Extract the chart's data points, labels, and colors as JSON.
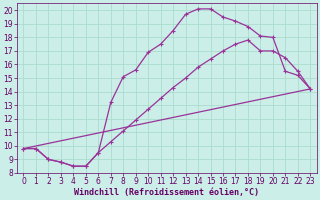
{
  "xlabel": "Windchill (Refroidissement éolien,°C)",
  "bg_color": "#cceee8",
  "grid_color": "#aaddcc",
  "line_color": "#993399",
  "xlim": [
    -0.5,
    23.5
  ],
  "ylim": [
    8,
    20.5
  ],
  "xticks": [
    0,
    1,
    2,
    3,
    4,
    5,
    6,
    7,
    8,
    9,
    10,
    11,
    12,
    13,
    14,
    15,
    16,
    17,
    18,
    19,
    20,
    21,
    22,
    23
  ],
  "yticks": [
    8,
    9,
    10,
    11,
    12,
    13,
    14,
    15,
    16,
    17,
    18,
    19,
    20
  ],
  "line1_x": [
    0,
    1,
    2,
    3,
    4,
    5,
    6,
    7,
    8,
    9,
    10,
    11,
    12,
    13,
    14,
    15,
    16,
    17,
    18,
    19,
    20,
    21,
    22,
    23
  ],
  "line1_y": [
    9.8,
    9.8,
    9.0,
    8.8,
    8.5,
    8.5,
    9.5,
    13.2,
    15.1,
    15.6,
    16.9,
    17.5,
    18.5,
    19.7,
    20.1,
    20.1,
    19.5,
    19.2,
    18.8,
    18.1,
    18.0,
    15.5,
    15.2,
    14.2
  ],
  "line2_x": [
    0,
    1,
    2,
    3,
    4,
    5,
    6,
    7,
    8,
    9,
    10,
    11,
    12,
    13,
    14,
    15,
    16,
    17,
    18,
    19,
    20,
    21,
    22,
    23
  ],
  "line2_y": [
    9.8,
    9.8,
    9.0,
    8.8,
    8.5,
    8.5,
    9.5,
    10.3,
    11.1,
    11.9,
    12.7,
    13.5,
    14.3,
    15.0,
    15.8,
    16.4,
    17.0,
    17.5,
    17.8,
    17.0,
    17.0,
    16.5,
    15.5,
    14.2
  ],
  "line3_x": [
    0,
    23
  ],
  "line3_y": [
    9.8,
    14.2
  ],
  "marker_size": 3,
  "linewidth": 0.9,
  "tick_fontsize": 5.5,
  "xlabel_fontsize": 6
}
